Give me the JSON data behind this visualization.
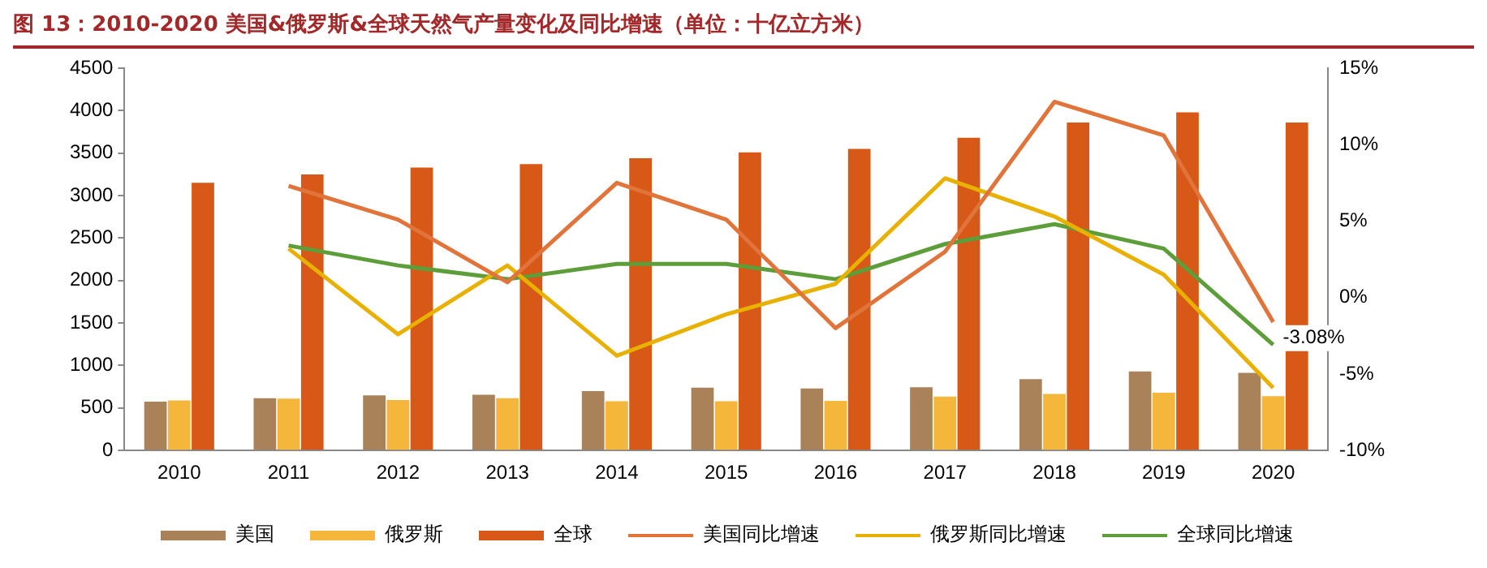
{
  "chart_data": {
    "type": "bar",
    "title": "图 13：2010-2020 美国&俄罗斯&全球天然气产量变化及同比增速（单位：十亿立方米）",
    "categories": [
      "2010",
      "2011",
      "2012",
      "2013",
      "2014",
      "2015",
      "2016",
      "2017",
      "2018",
      "2019",
      "2020"
    ],
    "series": [
      {
        "name": "美国",
        "color": "#a9825a",
        "values": [
          575,
          615,
          650,
          655,
          700,
          740,
          730,
          745,
          840,
          930,
          915
        ]
      },
      {
        "name": "俄罗斯",
        "color": "#f4b63b",
        "values": [
          590,
          610,
          595,
          615,
          580,
          580,
          585,
          635,
          665,
          680,
          640
        ]
      },
      {
        "name": "全球",
        "color": "#d85818",
        "values": [
          3150,
          3250,
          3330,
          3370,
          3440,
          3510,
          3550,
          3680,
          3860,
          3980,
          3860
        ]
      },
      {
        "name": "美国同比增速",
        "type": "line",
        "axis": "y2",
        "color": "#e0743a",
        "values": [
          null,
          7.3,
          5.1,
          1.0,
          7.5,
          5.1,
          -2.0,
          3.0,
          12.8,
          10.6,
          -1.6
        ]
      },
      {
        "name": "俄罗斯同比增速",
        "type": "line",
        "axis": "y2",
        "color": "#e8b100",
        "values": [
          null,
          3.2,
          -2.4,
          2.1,
          -3.8,
          -1.1,
          0.9,
          7.8,
          5.3,
          1.5,
          -5.9
        ]
      },
      {
        "name": "全球同比增速",
        "type": "line",
        "axis": "y2",
        "color": "#5e9e3a",
        "values": [
          null,
          3.4,
          2.1,
          1.2,
          2.2,
          2.2,
          1.2,
          3.5,
          4.8,
          3.2,
          -3.08
        ],
        "value_labels": [
          null,
          null,
          null,
          null,
          null,
          null,
          null,
          null,
          null,
          null,
          "-3.08%"
        ]
      }
    ],
    "ylim": [
      0,
      4500
    ],
    "yticks": [
      0,
      500,
      1000,
      1500,
      2000,
      2500,
      3000,
      3500,
      4000,
      4500
    ],
    "y2lim": [
      -10,
      15
    ],
    "y2ticks": [
      {
        "value": -10,
        "label": "-10%"
      },
      {
        "value": -5,
        "label": "-5%"
      },
      {
        "value": 0,
        "label": "0%"
      },
      {
        "value": 5,
        "label": "5%"
      },
      {
        "value": 10,
        "label": "10%"
      },
      {
        "value": 15,
        "label": "15%"
      }
    ],
    "grid": false,
    "legend": "bottom",
    "marker": "none",
    "line_style": "solid"
  }
}
